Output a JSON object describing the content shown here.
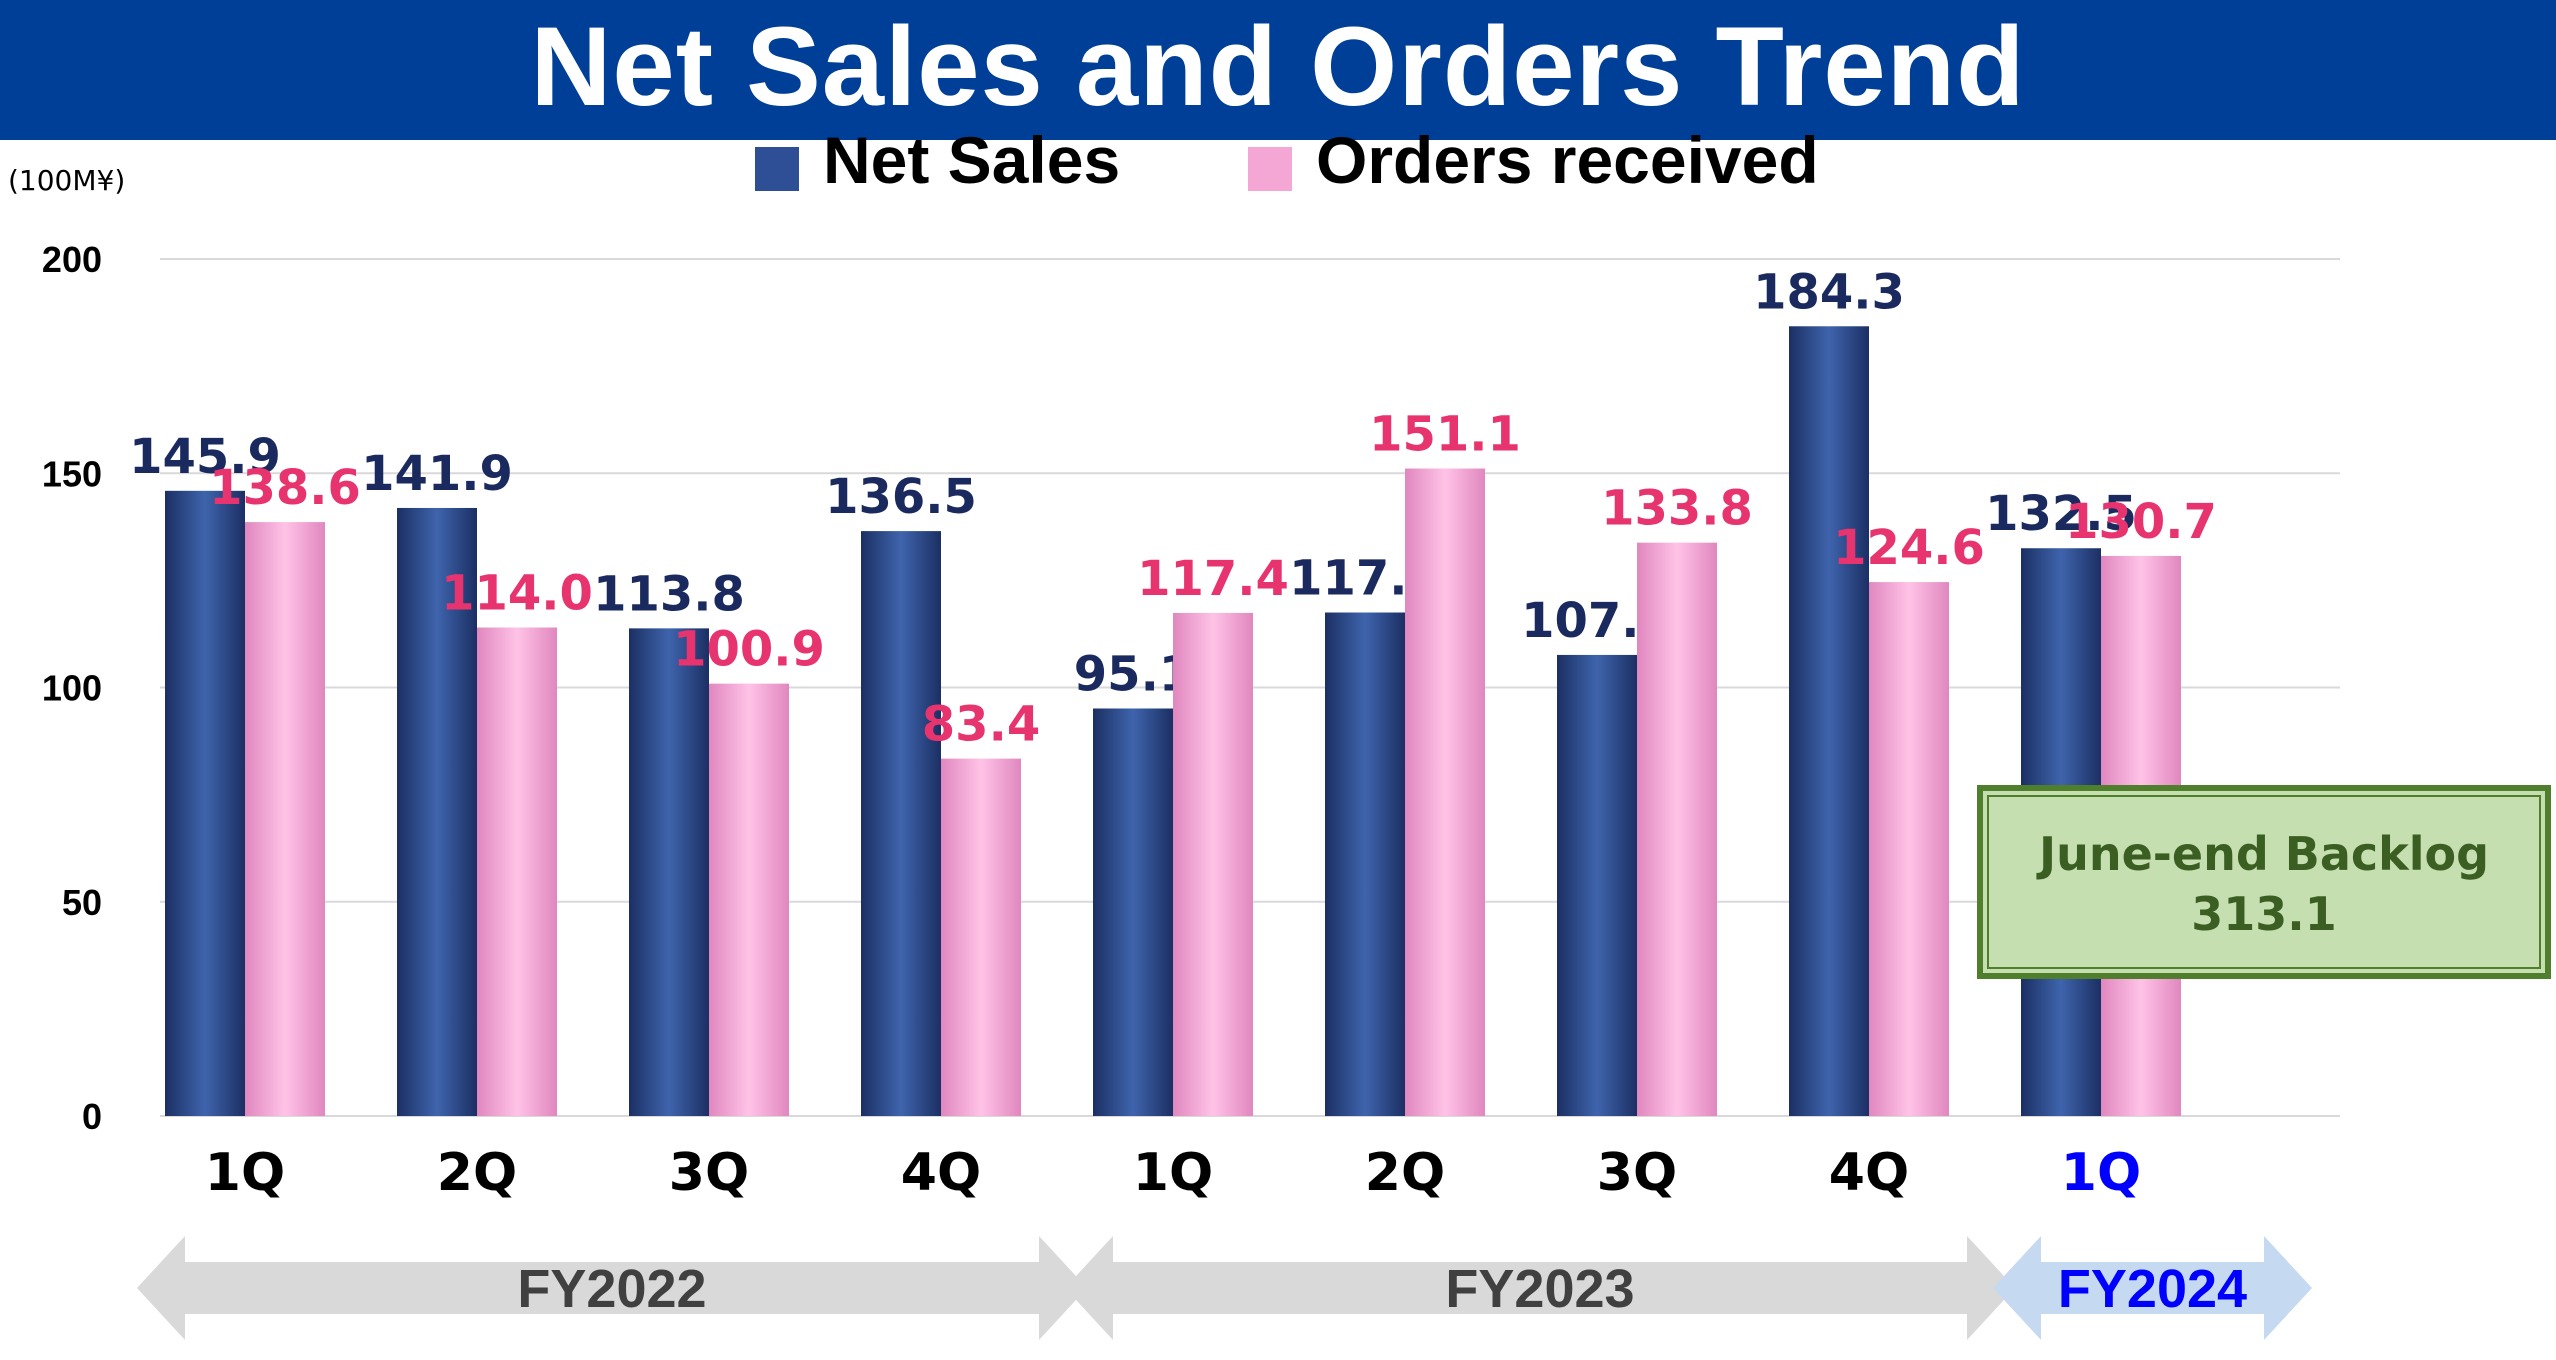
{
  "title": "Net Sales and Orders Trend",
  "chart_data": {
    "type": "bar",
    "unit_label": "(100M¥)",
    "categories": [
      "1Q",
      "2Q",
      "3Q",
      "4Q",
      "1Q",
      "2Q",
      "3Q",
      "4Q",
      "1Q"
    ],
    "series": [
      {
        "name": "Net Sales",
        "color": "#2e4f96",
        "label_color": "#1a2a5e",
        "values": [
          145.9,
          141.9,
          113.8,
          136.5,
          95.1,
          117.5,
          107.6,
          184.3,
          132.5
        ]
      },
      {
        "name": "Orders received",
        "color": "#f4a6d4",
        "label_color": "#e8346e",
        "values": [
          138.6,
          114.0,
          100.9,
          83.4,
          117.4,
          151.1,
          133.8,
          124.6,
          130.7
        ]
      }
    ],
    "y_ticks": [
      0,
      50,
      100,
      150,
      200
    ],
    "ylim": [
      0,
      200
    ],
    "grid": true,
    "legend": "top-center",
    "fiscal_years": [
      {
        "label": "FY2022",
        "quarters": 4,
        "color": "#d9d9d9",
        "text_color": "#404040"
      },
      {
        "label": "FY2023",
        "quarters": 4,
        "color": "#d9d9d9",
        "text_color": "#404040"
      },
      {
        "label": "FY2024",
        "quarters": 1,
        "color": "#c5d9f1",
        "text_color": "#0000ff"
      }
    ],
    "highlight_category_color": "#0000ff",
    "annotation": {
      "line1": "June-end Backlog",
      "line2": "313.1"
    }
  }
}
